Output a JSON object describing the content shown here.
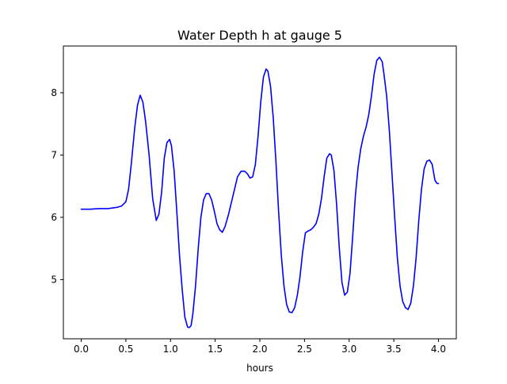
{
  "chart_data": {
    "type": "line",
    "title": "Water Depth h at gauge 5",
    "xlabel": "hours",
    "ylabel": "",
    "xlim": [
      -0.2,
      4.2
    ],
    "ylim": [
      4.05,
      8.75
    ],
    "xticks": [
      0.0,
      0.5,
      1.0,
      1.5,
      2.0,
      2.5,
      3.0,
      3.5,
      4.0
    ],
    "xtick_labels": [
      "0.0",
      "0.5",
      "1.0",
      "1.5",
      "2.0",
      "2.5",
      "3.0",
      "3.5",
      "4.0"
    ],
    "yticks": [
      5,
      6,
      7,
      8
    ],
    "ytick_labels": [
      "5",
      "6",
      "7",
      "8"
    ],
    "grid": false,
    "series": [
      {
        "color": "#0000ff",
        "x": [
          0.0,
          0.1,
          0.2,
          0.3,
          0.4,
          0.45,
          0.5,
          0.53,
          0.56,
          0.6,
          0.63,
          0.66,
          0.69,
          0.72,
          0.76,
          0.8,
          0.84,
          0.87,
          0.9,
          0.93,
          0.96,
          0.99,
          1.01,
          1.04,
          1.07,
          1.1,
          1.13,
          1.16,
          1.19,
          1.21,
          1.23,
          1.25,
          1.28,
          1.31,
          1.34,
          1.37,
          1.4,
          1.43,
          1.46,
          1.49,
          1.52,
          1.55,
          1.58,
          1.61,
          1.65,
          1.7,
          1.75,
          1.79,
          1.83,
          1.86,
          1.89,
          1.92,
          1.95,
          1.98,
          2.01,
          2.04,
          2.07,
          2.09,
          2.12,
          2.15,
          2.18,
          2.21,
          2.24,
          2.27,
          2.3,
          2.33,
          2.36,
          2.39,
          2.42,
          2.45,
          2.48,
          2.51,
          2.54,
          2.57,
          2.6,
          2.63,
          2.66,
          2.69,
          2.72,
          2.75,
          2.78,
          2.8,
          2.83,
          2.86,
          2.89,
          2.92,
          2.95,
          2.98,
          3.01,
          3.04,
          3.07,
          3.1,
          3.13,
          3.16,
          3.19,
          3.22,
          3.25,
          3.28,
          3.31,
          3.34,
          3.37,
          3.39,
          3.42,
          3.45,
          3.48,
          3.51,
          3.54,
          3.57,
          3.6,
          3.63,
          3.66,
          3.69,
          3.72,
          3.75,
          3.78,
          3.81,
          3.84,
          3.87,
          3.9,
          3.93,
          3.96,
          3.98,
          4.0
        ],
        "y": [
          6.13,
          6.13,
          6.14,
          6.14,
          6.16,
          6.18,
          6.25,
          6.45,
          6.85,
          7.45,
          7.8,
          7.96,
          7.85,
          7.55,
          7.0,
          6.3,
          5.95,
          6.05,
          6.4,
          6.95,
          7.2,
          7.25,
          7.15,
          6.75,
          6.1,
          5.4,
          4.85,
          4.4,
          4.24,
          4.23,
          4.26,
          4.45,
          4.9,
          5.5,
          6.0,
          6.28,
          6.38,
          6.38,
          6.28,
          6.1,
          5.9,
          5.8,
          5.76,
          5.85,
          6.05,
          6.35,
          6.65,
          6.74,
          6.74,
          6.7,
          6.63,
          6.65,
          6.85,
          7.3,
          7.85,
          8.25,
          8.38,
          8.35,
          8.1,
          7.6,
          6.9,
          6.1,
          5.4,
          4.9,
          4.6,
          4.48,
          4.47,
          4.55,
          4.75,
          5.05,
          5.45,
          5.75,
          5.78,
          5.8,
          5.84,
          5.9,
          6.05,
          6.3,
          6.65,
          6.95,
          7.02,
          7.0,
          6.75,
          6.2,
          5.5,
          4.95,
          4.75,
          4.8,
          5.1,
          5.7,
          6.35,
          6.8,
          7.1,
          7.3,
          7.45,
          7.65,
          7.95,
          8.3,
          8.52,
          8.57,
          8.5,
          8.3,
          7.95,
          7.4,
          6.7,
          6.0,
          5.35,
          4.9,
          4.65,
          4.55,
          4.52,
          4.62,
          4.9,
          5.35,
          5.95,
          6.45,
          6.78,
          6.9,
          6.92,
          6.85,
          6.6,
          6.55,
          6.54
        ]
      }
    ]
  }
}
